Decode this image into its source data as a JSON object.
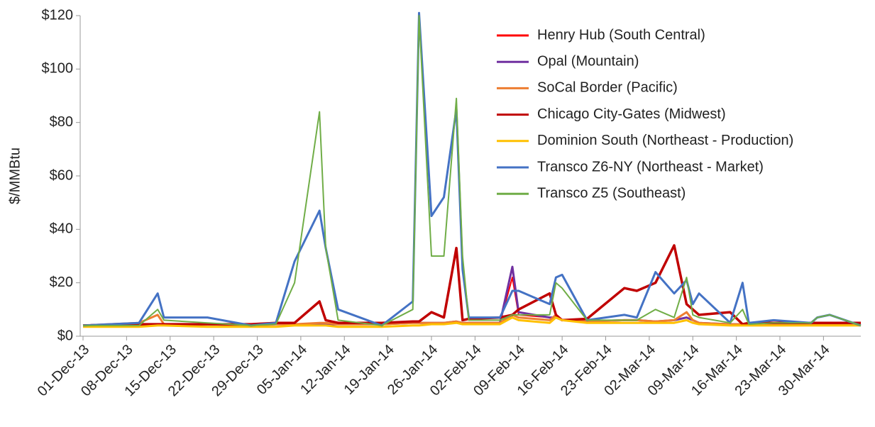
{
  "chart_data": {
    "type": "line",
    "y_label": "$/MMBtu",
    "x": [
      "01-Dec-13",
      "10-Dec-13",
      "13-Dec-13",
      "14-Dec-13",
      "21-Dec-13",
      "28-Dec-13",
      "01-Jan-14",
      "04-Jan-14",
      "08-Jan-14",
      "09-Jan-14",
      "11-Jan-14",
      "18-Jan-14",
      "23-Jan-14",
      "24-Jan-14",
      "26-Jan-14",
      "28-Jan-14",
      "30-Jan-14",
      "31-Jan-14",
      "01-Feb-14",
      "06-Feb-14",
      "08-Feb-14",
      "09-Feb-14",
      "14-Feb-14",
      "15-Feb-14",
      "16-Feb-14",
      "20-Feb-14",
      "26-Feb-14",
      "28-Feb-14",
      "03-Mar-14",
      "06-Mar-14",
      "08-Mar-14",
      "09-Mar-14",
      "10-Mar-14",
      "15-Mar-14",
      "17-Mar-14",
      "18-Mar-14",
      "22-Mar-14",
      "28-Mar-14",
      "29-Mar-14",
      "31-Mar-14",
      "05-Apr-14"
    ],
    "xlim": [
      "01-Dec-13",
      "05-Apr-14"
    ],
    "xticks": [
      "01-Dec-13",
      "08-Dec-13",
      "15-Dec-13",
      "22-Dec-13",
      "29-Dec-13",
      "05-Jan-14",
      "12-Jan-14",
      "19-Jan-14",
      "26-Jan-14",
      "02-Feb-14",
      "09-Feb-14",
      "16-Feb-14",
      "23-Feb-14",
      "02-Mar-14",
      "09-Mar-14",
      "16-Mar-14",
      "23-Mar-14",
      "30-Mar-14"
    ],
    "ylim": [
      0,
      120
    ],
    "yticks": [
      {
        "value": 0,
        "label": "$0"
      },
      {
        "value": 20,
        "label": "$20"
      },
      {
        "value": 40,
        "label": "$40"
      },
      {
        "value": 60,
        "label": "$60"
      },
      {
        "value": 80,
        "label": "$80"
      },
      {
        "value": 100,
        "label": "$100"
      },
      {
        "value": 120,
        "label": "$120"
      }
    ],
    "grid": false,
    "legend": "top-right",
    "series": [
      {
        "name": "Henry Hub (South Central)",
        "color": "#ff0000",
        "width": 2,
        "values": [
          4,
          4,
          4.5,
          4.5,
          4.5,
          4,
          4.5,
          4.5,
          4.5,
          4.5,
          4.5,
          4.5,
          5,
          5,
          5,
          5,
          5.5,
          5,
          5,
          5,
          22,
          8,
          7,
          7,
          6,
          5.5,
          6,
          6,
          5.5,
          6,
          7,
          6,
          5,
          4.5,
          4.5,
          4.5,
          4.5,
          4.5,
          4.5,
          4.5,
          4.5
        ]
      },
      {
        "name": "Opal (Mountain)",
        "color": "#7030a0",
        "width": 3,
        "values": [
          4,
          4,
          4.5,
          4.5,
          4.5,
          4,
          4.5,
          4.5,
          4.5,
          4.5,
          4.5,
          4.5,
          5,
          5,
          5,
          5,
          5.5,
          5,
          5,
          5,
          26,
          9,
          7,
          7,
          6,
          5.5,
          6,
          6,
          5.5,
          6,
          7,
          6,
          5,
          4.5,
          4.5,
          4.5,
          4.5,
          4.5,
          4.5,
          4.5,
          4.5
        ]
      },
      {
        "name": "SoCal Border (Pacific)",
        "color": "#ed7d31",
        "width": 3,
        "values": [
          4,
          5,
          8,
          4.5,
          4.5,
          4,
          4.5,
          4.5,
          5,
          5,
          4.5,
          4.5,
          5,
          5,
          5,
          5,
          5.5,
          5,
          5,
          5,
          8,
          7,
          6,
          8,
          6,
          5.5,
          6,
          6,
          5.5,
          6,
          9,
          6,
          5,
          4.5,
          4.5,
          4.5,
          4.5,
          4.5,
          4.5,
          4.5,
          4.5
        ]
      },
      {
        "name": "Chicago City-Gates (Midwest)",
        "color": "#c00000",
        "width": 3.5,
        "values": [
          4,
          4.5,
          4.5,
          4.5,
          4.5,
          4.5,
          5,
          5,
          13,
          6,
          5,
          5,
          5.5,
          5.5,
          9,
          7,
          33,
          6,
          6.5,
          7,
          8,
          10,
          16,
          8,
          6,
          6.5,
          18,
          17,
          20,
          34,
          12,
          10,
          8,
          9,
          4.5,
          5,
          5,
          5,
          5,
          5,
          5
        ]
      },
      {
        "name": "Dominion South (Northeast - Production)",
        "color": "#ffc000",
        "width": 3,
        "values": [
          3.5,
          3.5,
          4,
          4,
          3.5,
          3.5,
          3.5,
          4,
          4,
          4,
          3.5,
          3.5,
          4,
          4,
          4.5,
          4.5,
          5,
          4.5,
          4.5,
          4.5,
          7,
          6,
          5,
          7,
          6,
          5,
          5,
          5,
          5,
          5,
          6,
          5,
          4.5,
          4,
          4,
          4,
          4,
          4,
          4,
          4,
          4
        ]
      },
      {
        "name": "Transco Z6-NY (Northeast - Market)",
        "color": "#4472c4",
        "width": 3,
        "values": [
          4,
          5,
          16,
          7,
          7,
          4,
          5,
          28,
          47,
          33,
          10,
          4,
          13,
          121,
          45,
          52,
          85,
          25,
          7,
          7,
          17,
          17,
          12,
          22,
          23,
          6,
          8,
          7,
          24,
          16,
          21,
          12,
          16,
          5,
          20,
          5,
          6,
          5,
          7,
          8,
          4
        ]
      },
      {
        "name": "Transco Z5 (Southeast)",
        "color": "#70ad47",
        "width": 2,
        "values": [
          4,
          4,
          10,
          6,
          5,
          4,
          4.5,
          20,
          84,
          33,
          6,
          4,
          10,
          120,
          30,
          30,
          89,
          30,
          6,
          6,
          8,
          8,
          8,
          20,
          18,
          6,
          6,
          6,
          10,
          7,
          22,
          8,
          7,
          5,
          10,
          4.5,
          5,
          5,
          7,
          8,
          4
        ]
      }
    ]
  }
}
